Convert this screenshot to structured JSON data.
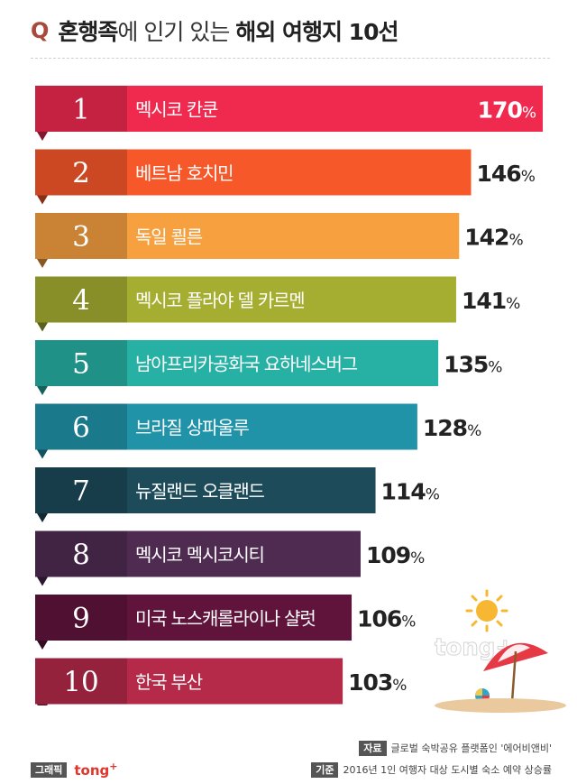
{
  "header": {
    "q_mark": "Q",
    "title_bold_1": "혼행족",
    "title_light": "에 인기 있는 ",
    "title_bold_2": "해외 여행지 10선"
  },
  "chart_data": {
    "type": "bar",
    "orientation": "horizontal",
    "title": "혼행족에 인기 있는 해외 여행지 10선",
    "unit": "%",
    "ranks": [
      "1",
      "2",
      "3",
      "4",
      "5",
      "6",
      "7",
      "8",
      "9",
      "10"
    ],
    "categories": [
      "멕시코 칸쿤",
      "베트남 호치민",
      "독일 쾰른",
      "멕시코 플라야 델 카르멘",
      "남아프리카공화국 요하네스버그",
      "브라질 상파울루",
      "뉴질랜드 오클랜드",
      "멕시코 멕시코시티",
      "미국 노스캐롤라이나 샬럿",
      "한국 부산"
    ],
    "values": [
      170,
      146,
      142,
      141,
      135,
      128,
      114,
      109,
      106,
      103
    ],
    "colors": [
      "#f0294f",
      "#f7582a",
      "#f6a03f",
      "#a6ae32",
      "#27b1a5",
      "#2093a9",
      "#1d4b5a",
      "#4f2b52",
      "#60143c",
      "#b62a49"
    ]
  },
  "watermark": "tong+",
  "source": {
    "source_tag": "자료",
    "source_text": "글로벌 숙박공유 플랫폼인 '에어비앤비'",
    "basis_tag": "기준",
    "basis_text": "2016년 1인 여행자 대상 도시별 숙소 예약 상승률"
  },
  "credit": {
    "tag": "그래픽",
    "brand": "tong",
    "brand_plus": "+"
  }
}
